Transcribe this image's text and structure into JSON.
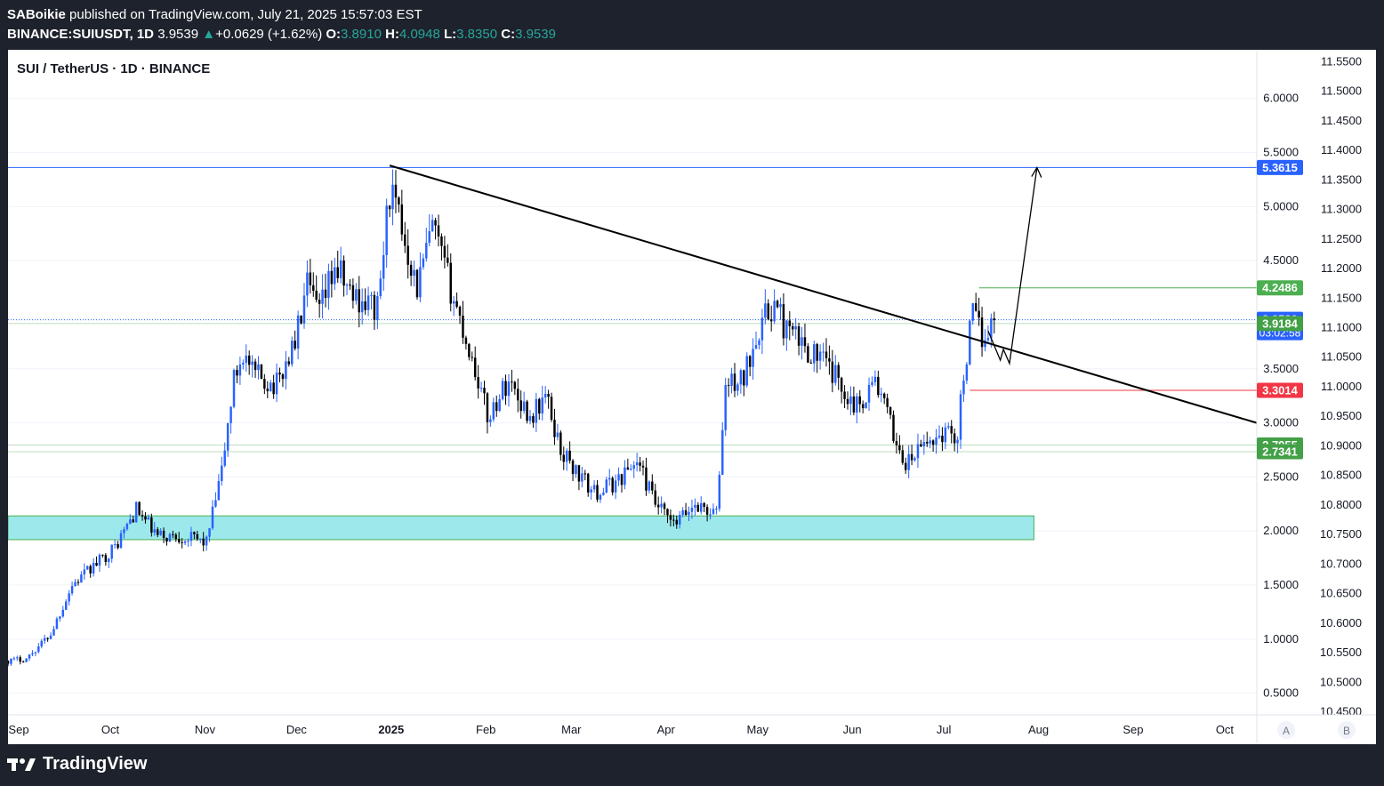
{
  "header": {
    "author": "SABoikie",
    "published": "published on TradingView.com, July 21, 2025 15:57:03 EST",
    "symbol": "BINANCE:SUIUSDT, 1D",
    "last": "3.9539",
    "arrow": "▲",
    "change": "+0.0629 (+1.62%)",
    "o_label": "O:",
    "o": "3.8910",
    "h_label": "H:",
    "h": "4.0948",
    "l_label": "L:",
    "l": "3.8350",
    "c_label": "C:",
    "c": "3.9539"
  },
  "chart_title": "SUI / TetherUS · 1D · BINANCE",
  "footer": {
    "brand": "TradingView"
  },
  "chart_data": {
    "type": "candlestick",
    "title": "SUI / TetherUS · 1D · BINANCE",
    "x_ticks": [
      "Sep",
      "Oct",
      "Nov",
      "Dec",
      "2025",
      "Feb",
      "Mar",
      "Apr",
      "May",
      "Jun",
      "Jul",
      "Aug",
      "Sep",
      "Oct"
    ],
    "x_range": [
      "2024-09-01",
      "2025-10-15"
    ],
    "y_left_ticks": [
      "6.0000",
      "5.5000",
      "5.0000",
      "4.5000",
      "3.5000",
      "3.0000",
      "2.5000",
      "2.0000",
      "1.5000",
      "1.0000",
      "0.5000"
    ],
    "y_left_range": [
      0.3,
      6.45
    ],
    "y_right_ticks": [
      "11.5500",
      "11.5000",
      "11.4500",
      "11.4000",
      "11.3500",
      "11.3000",
      "11.2500",
      "11.2000",
      "11.1500",
      "11.1000",
      "11.0500",
      "11.0000",
      "10.9500",
      "10.9000",
      "10.8500",
      "10.8000",
      "10.7500",
      "10.7000",
      "10.6500",
      "10.6000",
      "10.5500",
      "10.5000",
      "10.4500"
    ],
    "y_right_range": [
      10.445,
      11.57
    ],
    "scale_buttons": [
      "A",
      "B"
    ],
    "series": [
      {
        "name": "SUIUSDT",
        "keypoints": [
          [
            "2024-09-01",
            0.8
          ],
          [
            "2024-09-07",
            0.82
          ],
          [
            "2024-09-15",
            1.05
          ],
          [
            "2024-09-22",
            1.5
          ],
          [
            "2024-09-30",
            1.7
          ],
          [
            "2024-10-06",
            1.85
          ],
          [
            "2024-10-13",
            2.2
          ],
          [
            "2024-10-20",
            1.95
          ],
          [
            "2024-10-28",
            1.95
          ],
          [
            "2024-11-05",
            1.9
          ],
          [
            "2024-11-10",
            2.55
          ],
          [
            "2024-11-14",
            3.4
          ],
          [
            "2024-11-17",
            3.65
          ],
          [
            "2024-11-20",
            3.45
          ],
          [
            "2024-11-28",
            3.35
          ],
          [
            "2024-12-04",
            3.75
          ],
          [
            "2024-12-08",
            4.25
          ],
          [
            "2024-12-12",
            4.0
          ],
          [
            "2024-12-17",
            4.45
          ],
          [
            "2024-12-22",
            4.2
          ],
          [
            "2024-12-31",
            4.05
          ],
          [
            "2025-01-04",
            5.15
          ],
          [
            "2025-01-09",
            4.7
          ],
          [
            "2025-01-13",
            4.25
          ],
          [
            "2025-01-18",
            4.8
          ],
          [
            "2025-01-25",
            4.15
          ],
          [
            "2025-02-02",
            3.4
          ],
          [
            "2025-02-05",
            3.05
          ],
          [
            "2025-02-12",
            3.4
          ],
          [
            "2025-02-19",
            3.05
          ],
          [
            "2025-02-24",
            3.25
          ],
          [
            "2025-03-01",
            2.75
          ],
          [
            "2025-03-06",
            2.55
          ],
          [
            "2025-03-12",
            2.35
          ],
          [
            "2025-03-19",
            2.45
          ],
          [
            "2025-03-26",
            2.65
          ],
          [
            "2025-04-01",
            2.25
          ],
          [
            "2025-04-07",
            2.05
          ],
          [
            "2025-04-14",
            2.25
          ],
          [
            "2025-04-21",
            2.15
          ],
          [
            "2025-04-24",
            3.35
          ],
          [
            "2025-04-30",
            3.4
          ],
          [
            "2025-05-04",
            3.85
          ],
          [
            "2025-05-10",
            4.1
          ],
          [
            "2025-05-14",
            3.85
          ],
          [
            "2025-05-20",
            3.7
          ],
          [
            "2025-05-25",
            3.6
          ],
          [
            "2025-06-01",
            3.35
          ],
          [
            "2025-06-06",
            3.15
          ],
          [
            "2025-06-12",
            3.4
          ],
          [
            "2025-06-18",
            2.9
          ],
          [
            "2025-06-22",
            2.6
          ],
          [
            "2025-06-28",
            2.8
          ],
          [
            "2025-07-04",
            2.9
          ],
          [
            "2025-07-09",
            2.9
          ],
          [
            "2025-07-11",
            3.45
          ],
          [
            "2025-07-14",
            4.0
          ],
          [
            "2025-07-17",
            3.8
          ],
          [
            "2025-07-21",
            3.95
          ]
        ]
      }
    ],
    "horizontal_levels": [
      {
        "label": "5.3615",
        "value": 5.3615,
        "color": "#2962ff"
      },
      {
        "label": "4.2486",
        "value": 4.2486,
        "color": "#4caf50",
        "start": "2025-07-16"
      },
      {
        "label": "3.9539",
        "value": 3.9539,
        "color": "#2962ff",
        "countdown": "03:02:58",
        "dotted": true
      },
      {
        "label": "3.9184",
        "value": 3.9184,
        "color": "#43a047"
      },
      {
        "label": "3.3014",
        "value": 3.3014,
        "color": "#f23645",
        "start": "2025-07-13"
      },
      {
        "label": "2.7955",
        "value": 2.7955,
        "color": "#43a047"
      },
      {
        "label": "2.7341",
        "value": 2.7341,
        "color": "#43a047"
      }
    ],
    "support_zone": {
      "low": 1.92,
      "high": 2.14,
      "end": "2025-08-03",
      "color": "#9de8eb"
    },
    "trendline": {
      "start": [
        "2025-01-04",
        5.38
      ],
      "end": [
        "2025-10-15",
        3.0
      ]
    },
    "projection_path": [
      [
        "2025-07-19",
        3.85
      ],
      [
        "2025-07-23",
        3.58
      ],
      [
        "2025-07-24",
        3.68
      ],
      [
        "2025-07-26",
        3.55
      ],
      [
        "2025-08-04",
        5.36
      ]
    ]
  }
}
